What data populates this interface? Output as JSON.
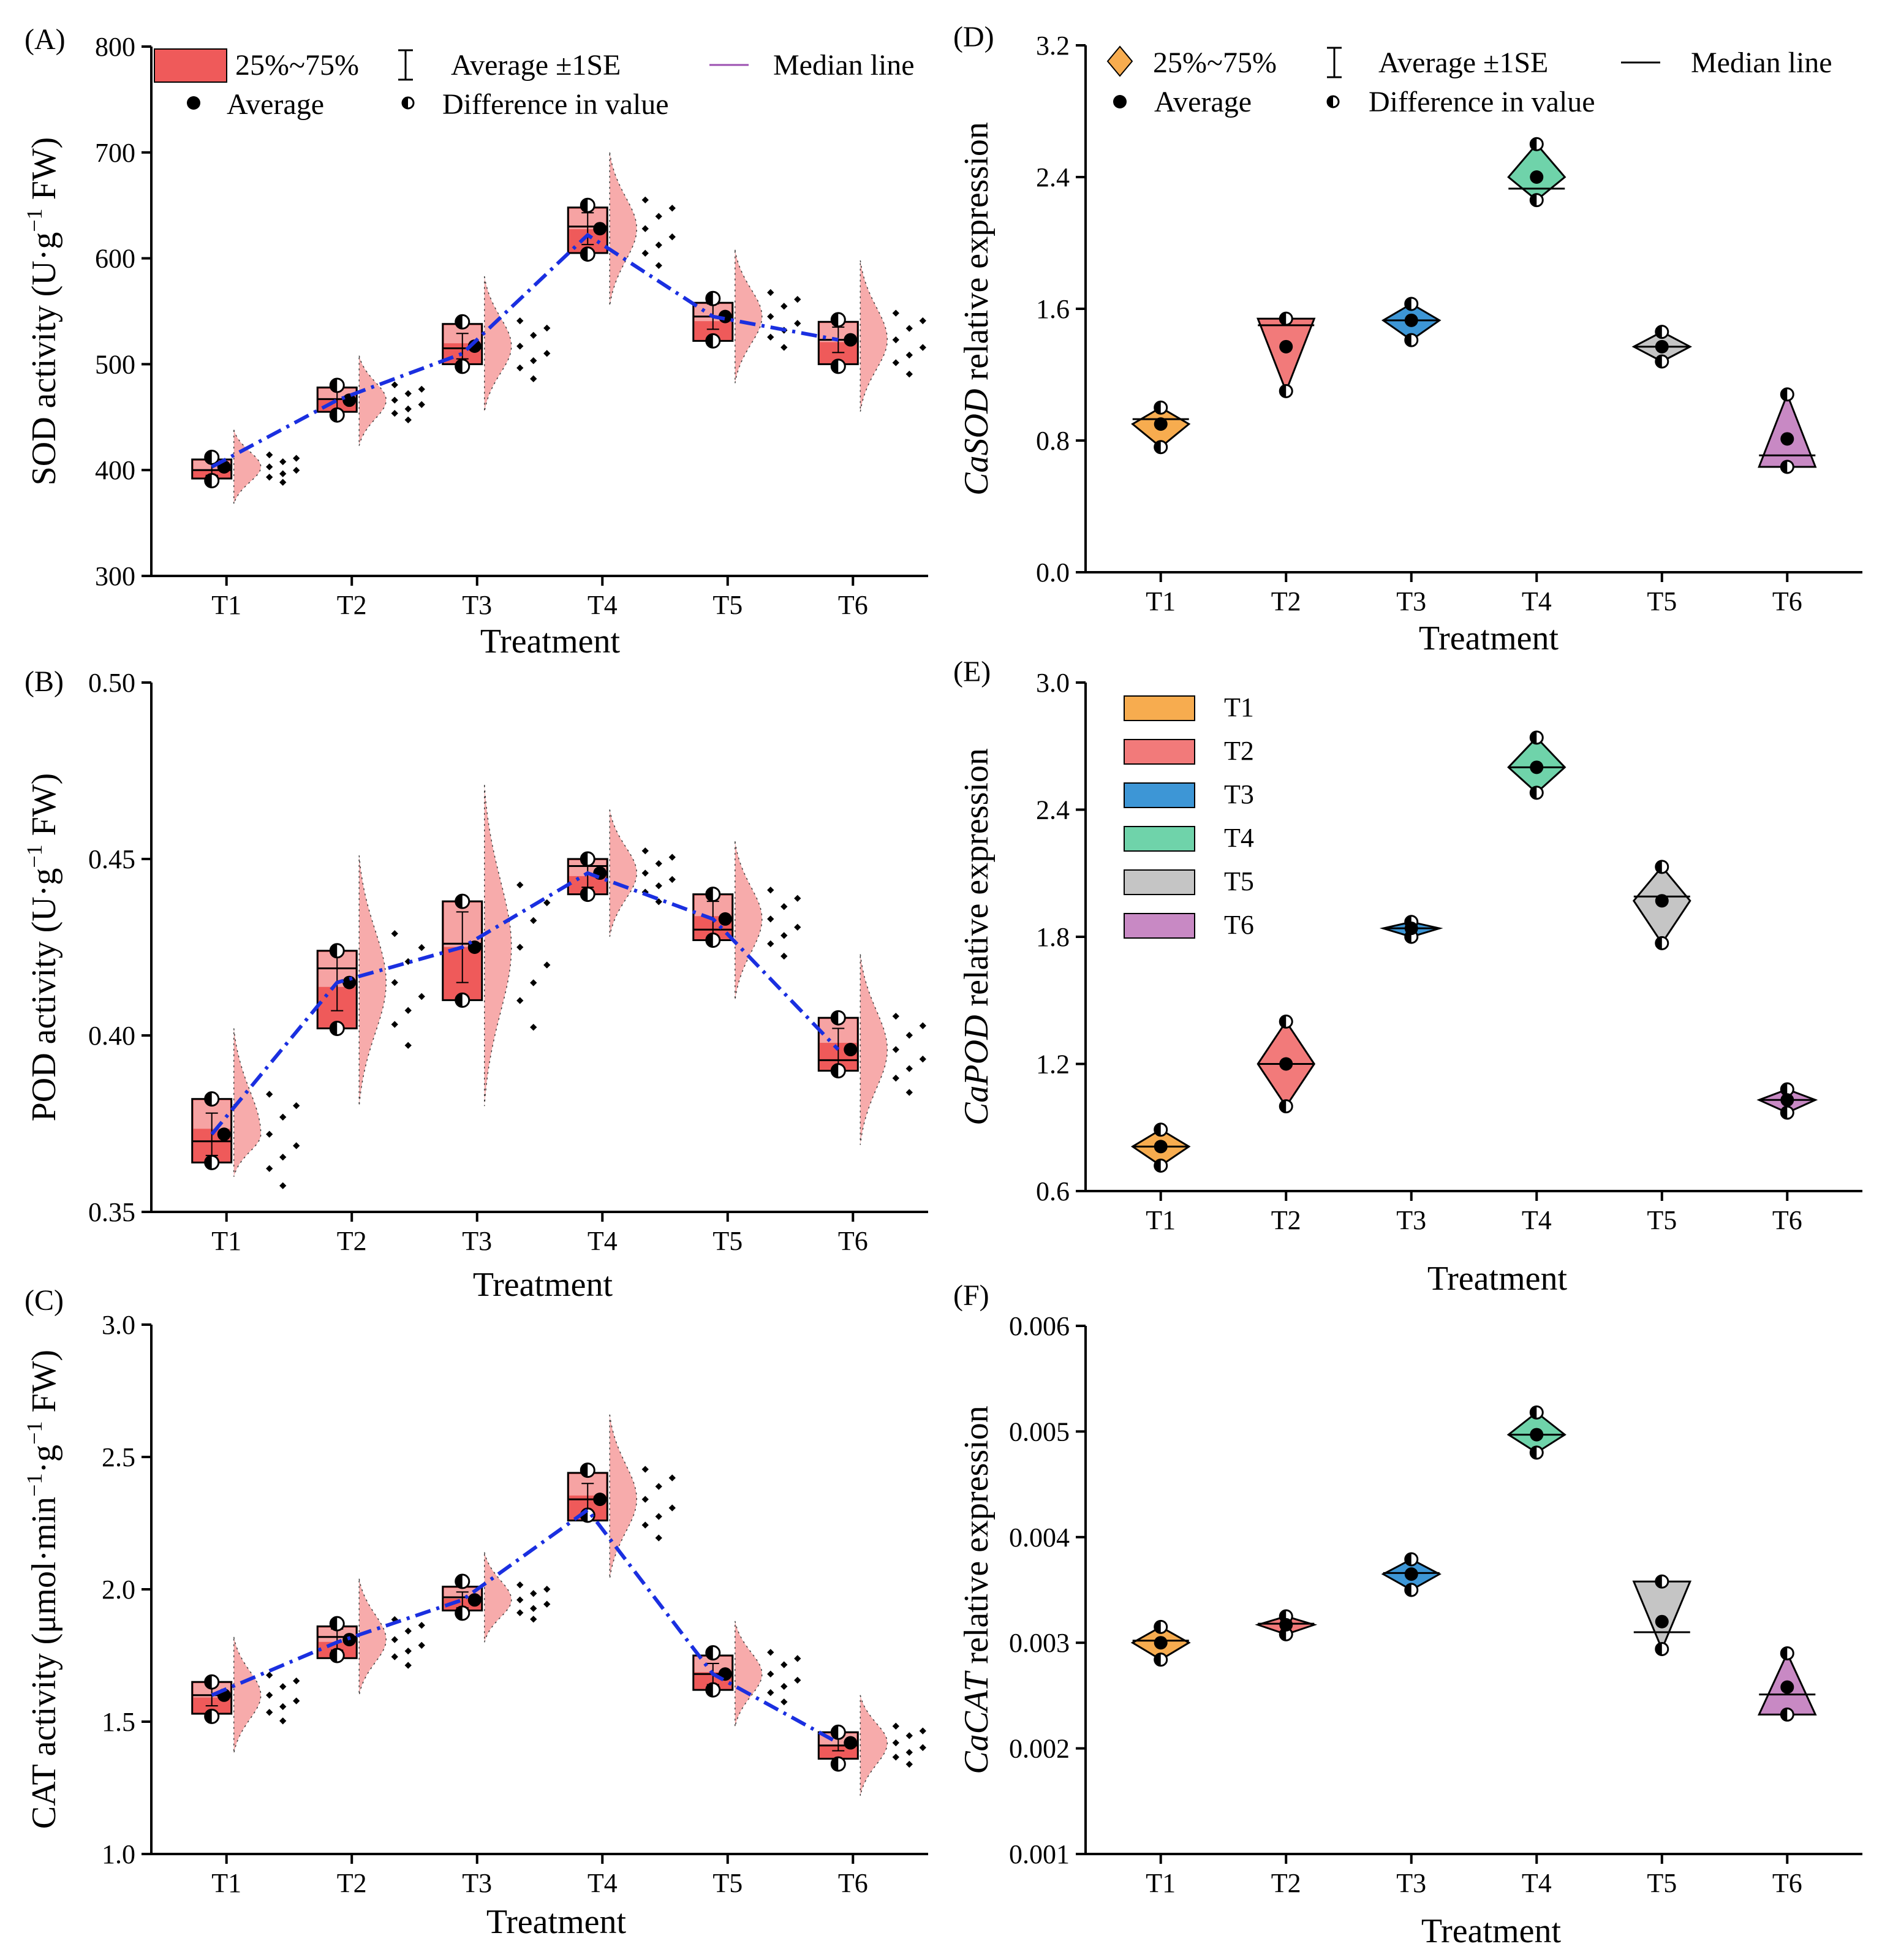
{
  "figure": {
    "treatments": [
      "T1",
      "T2",
      "T3",
      "T4",
      "T5",
      "T6"
    ],
    "colors": {
      "enzyme_fill": "#ef5a5a",
      "enzyme_fill_light": "#f7b5b5",
      "violin_fill": "#f59090",
      "trend_line": "#1a2fe0",
      "marker": "#000000",
      "T1": "#f7ac4f",
      "T2": "#f27a7a",
      "T3": "#3d96d6",
      "T4": "#6fd3aa",
      "T5": "#c5c5c5",
      "T6": "#c889c4"
    },
    "top_legend_left": {
      "box_label": "25%~75%",
      "se_label": "Average ±1SE",
      "median_label": "Median line",
      "average_label": "Average",
      "diff_label": "Difference in value"
    },
    "top_legend_right": {
      "box_label": "25%~75%",
      "se_label": "Average ±1SE",
      "median_label": "Median line",
      "average_label": "Average",
      "diff_label": "Difference in value"
    },
    "color_legend": [
      "T1",
      "T2",
      "T3",
      "T4",
      "T5",
      "T6"
    ]
  },
  "chart_data": [
    {
      "panel": "(A)",
      "type": "box-violin",
      "xlabel": "Treatment",
      "ylabel": "SOD activity (U·g⁻¹ FW)",
      "ylabel_main": "SOD activity (U·g",
      "ylabel_sup": "−1",
      "ylabel_tail": " FW)",
      "ylim": [
        300,
        800
      ],
      "yticks": [
        "300",
        "400",
        "500",
        "600",
        "700",
        "800"
      ],
      "categories": [
        "T1",
        "T2",
        "T3",
        "T4",
        "T5",
        "T6"
      ],
      "mean": [
        403,
        466,
        517,
        628,
        545,
        523
      ],
      "se": [
        8,
        10,
        12,
        15,
        12,
        12
      ],
      "q1": [
        392,
        455,
        500,
        605,
        522,
        500
      ],
      "q3": [
        410,
        478,
        538,
        648,
        558,
        540
      ],
      "median": [
        400,
        467,
        515,
        630,
        545,
        523
      ],
      "diff_low": [
        390,
        452,
        498,
        604,
        522,
        498
      ],
      "diff_high": [
        412,
        480,
        540,
        650,
        562,
        542
      ],
      "violin_min": [
        368,
        423,
        455,
        555,
        482,
        455
      ],
      "violin_max": [
        438,
        508,
        583,
        700,
        608,
        598
      ],
      "trend": [
        403,
        466,
        510,
        622,
        545,
        523
      ]
    },
    {
      "panel": "(B)",
      "type": "box-violin",
      "xlabel": "Treatment",
      "ylabel": "POD activity (U·g⁻¹ FW)",
      "ylabel_main": "POD activity  (U·g",
      "ylabel_sup": "−1",
      "ylabel_tail": " FW)",
      "ylim": [
        0.35,
        0.5
      ],
      "yticks": [
        "0.35",
        "0.40",
        "0.45",
        "0.50"
      ],
      "categories": [
        "T1",
        "T2",
        "T3",
        "T4",
        "T5",
        "T6"
      ],
      "mean": [
        0.372,
        0.415,
        0.425,
        0.446,
        0.433,
        0.396
      ],
      "se": [
        0.006,
        0.008,
        0.01,
        0.004,
        0.005,
        0.006
      ],
      "q1": [
        0.364,
        0.402,
        0.41,
        0.44,
        0.427,
        0.39
      ],
      "q3": [
        0.382,
        0.424,
        0.438,
        0.45,
        0.44,
        0.405
      ],
      "median": [
        0.37,
        0.419,
        0.426,
        0.448,
        0.43,
        0.393
      ],
      "diff_low": [
        0.364,
        0.402,
        0.41,
        0.44,
        0.427,
        0.39
      ],
      "diff_high": [
        0.382,
        0.424,
        0.438,
        0.45,
        0.44,
        0.405
      ],
      "violin_min": [
        0.36,
        0.38,
        0.38,
        0.428,
        0.41,
        0.369
      ],
      "violin_max": [
        0.402,
        0.451,
        0.471,
        0.464,
        0.455,
        0.423
      ],
      "trend": [
        0.372,
        0.415,
        0.425,
        0.446,
        0.433,
        0.396
      ]
    },
    {
      "panel": "(C)",
      "type": "box-violin",
      "xlabel": "Treatment",
      "ylabel": "CAT activity (μmol·min⁻¹·g⁻¹ FW)",
      "ylabel_main": "CAT activity  (μmol·min",
      "ylabel_sup": "−1",
      "ylabel_mid": "·g",
      "ylabel_sup2": "−1",
      "ylabel_tail": " FW)",
      "ylim": [
        1.0,
        3.0
      ],
      "yticks": [
        "1.0",
        "1.5",
        "2.0",
        "2.5",
        "3.0"
      ],
      "categories": [
        "T1",
        "T2",
        "T3",
        "T4",
        "T5",
        "T6"
      ],
      "mean": [
        1.6,
        1.81,
        1.96,
        2.34,
        1.68,
        1.42
      ],
      "se": [
        0.04,
        0.04,
        0.03,
        0.06,
        0.04,
        0.03
      ],
      "q1": [
        1.53,
        1.74,
        1.92,
        2.26,
        1.62,
        1.36
      ],
      "q3": [
        1.65,
        1.86,
        2.01,
        2.44,
        1.75,
        1.46
      ],
      "median": [
        1.6,
        1.82,
        1.97,
        2.34,
        1.68,
        1.41
      ],
      "diff_low": [
        1.52,
        1.75,
        1.91,
        2.28,
        1.62,
        1.34
      ],
      "diff_high": [
        1.65,
        1.87,
        2.03,
        2.45,
        1.76,
        1.46
      ],
      "violin_min": [
        1.38,
        1.6,
        1.8,
        2.04,
        1.48,
        1.22
      ],
      "violin_max": [
        1.82,
        2.04,
        2.14,
        2.66,
        1.88,
        1.6
      ],
      "trend": [
        1.6,
        1.8,
        1.96,
        2.3,
        1.68,
        1.42
      ]
    },
    {
      "panel": "(D)",
      "type": "diamond",
      "xlabel": "Treatment",
      "ylabel_gene": "CaSOD",
      "ylabel_rest": " relative expression",
      "ylim": [
        0.0,
        3.2
      ],
      "yticks": [
        "0.0",
        "0.8",
        "1.6",
        "2.4",
        "3.2"
      ],
      "categories": [
        "T1",
        "T2",
        "T3",
        "T4",
        "T5",
        "T6"
      ],
      "mean": [
        0.9,
        1.37,
        1.53,
        2.4,
        1.37,
        0.81
      ],
      "min": [
        0.76,
        1.1,
        1.41,
        2.26,
        1.28,
        0.64
      ],
      "max": [
        1.0,
        1.54,
        1.63,
        2.6,
        1.46,
        1.08
      ],
      "median": [
        0.93,
        1.5,
        1.53,
        2.33,
        1.37,
        0.71
      ],
      "shape": [
        "diamond",
        "down",
        "diamond",
        "diamond",
        "diamond",
        "up"
      ]
    },
    {
      "panel": "(E)",
      "type": "diamond",
      "xlabel": "Treatment",
      "ylabel_gene": "CaPOD",
      "ylabel_rest": " relative expression",
      "ylim": [
        0.6,
        3.0
      ],
      "yticks": [
        "0.6",
        "1.2",
        "1.8",
        "2.4",
        "3.0"
      ],
      "categories": [
        "T1",
        "T2",
        "T3",
        "T4",
        "T5",
        "T6"
      ],
      "mean": [
        0.81,
        1.2,
        1.84,
        2.6,
        1.97,
        1.03
      ],
      "min": [
        0.72,
        1.0,
        1.8,
        2.48,
        1.77,
        0.97
      ],
      "max": [
        0.89,
        1.4,
        1.87,
        2.74,
        2.13,
        1.08
      ],
      "median": [
        0.81,
        1.2,
        1.84,
        2.6,
        1.99,
        1.03
      ],
      "shape": [
        "diamond",
        "diamond",
        "diamond",
        "diamond",
        "diamond",
        "diamond"
      ]
    },
    {
      "panel": "(F)",
      "type": "diamond",
      "xlabel": "Treatment",
      "ylabel_gene": "CaCAT",
      "ylabel_rest": " relative expression",
      "ylim": [
        0.001,
        0.006
      ],
      "yticks": [
        "0.001",
        "0.002",
        "0.003",
        "0.004",
        "0.005",
        "0.006"
      ],
      "categories": [
        "T1",
        "T2",
        "T3",
        "T4",
        "T5",
        "T6"
      ],
      "mean": [
        0.003,
        0.00317,
        0.00365,
        0.00497,
        0.0032,
        0.00258
      ],
      "min": [
        0.00284,
        0.00308,
        0.0035,
        0.0048,
        0.00294,
        0.00232
      ],
      "max": [
        0.00315,
        0.00325,
        0.00379,
        0.00518,
        0.00358,
        0.0029
      ],
      "median": [
        0.00302,
        0.00318,
        0.00366,
        0.00497,
        0.0031,
        0.00251
      ],
      "shape": [
        "diamond",
        "diamond",
        "diamond",
        "diamond",
        "down",
        "up"
      ]
    }
  ]
}
